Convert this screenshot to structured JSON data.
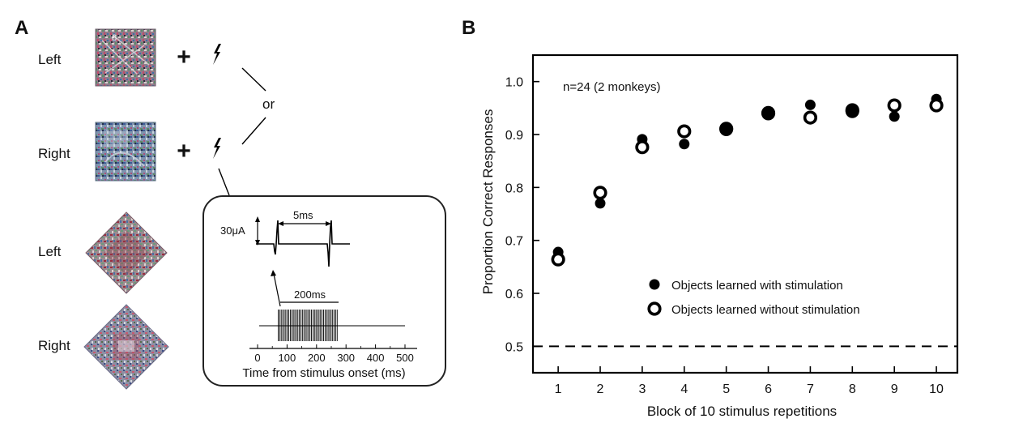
{
  "panel_a": {
    "label": "A",
    "rows": [
      {
        "label": "Left",
        "stim": "both"
      },
      {
        "label": "Right",
        "stim": "both"
      },
      {
        "label": "Left",
        "stim": "none"
      },
      {
        "label": "Right",
        "stim": "none"
      }
    ],
    "plus": "+",
    "or_text": "or",
    "stim_icon": "lightning-bolt-icon",
    "inset": {
      "amplitude_label": "30μA",
      "interval_label": "5ms",
      "train_label": "200ms",
      "xlabel": "Time from stimulus onset (ms)",
      "ticks": [
        0,
        100,
        200,
        300,
        400,
        500
      ],
      "train_start_ms": 70,
      "train_end_ms": 270,
      "n_pulses": 40
    }
  },
  "panel_b": {
    "label": "B"
  },
  "chart_data": {
    "type": "scatter",
    "xlabel": "Block of 10 stimulus repetitions",
    "ylabel": "Proportion Correct Responses",
    "annotation": "n=24 (2 monkeys)",
    "xlim": [
      0.4,
      10.5
    ],
    "ylim": [
      0.45,
      1.05
    ],
    "xticks": [
      1,
      2,
      3,
      4,
      5,
      6,
      7,
      8,
      9,
      10
    ],
    "yticks": [
      "0.5",
      "0.6",
      "0.7",
      "0.8",
      "0.9",
      "1.0"
    ],
    "chance_level": 0.5,
    "legend_position": "lower-right",
    "series": [
      {
        "name": "Objects learned with stimulation",
        "marker": "filled-circle",
        "color": "#000000",
        "x": [
          1,
          2,
          3,
          4,
          5,
          6,
          7,
          8,
          9,
          10
        ],
        "y": [
          0.678,
          0.77,
          0.891,
          0.882,
          0.91,
          0.941,
          0.956,
          0.944,
          0.934,
          0.967
        ]
      },
      {
        "name": "Objects learned without stimulation",
        "marker": "open-circle",
        "color": "#000000",
        "x": [
          1,
          2,
          3,
          4,
          5,
          6,
          7,
          8,
          9,
          10
        ],
        "y": [
          0.664,
          0.79,
          0.876,
          0.906,
          0.911,
          0.94,
          0.932,
          0.946,
          0.955,
          0.955
        ]
      }
    ]
  }
}
